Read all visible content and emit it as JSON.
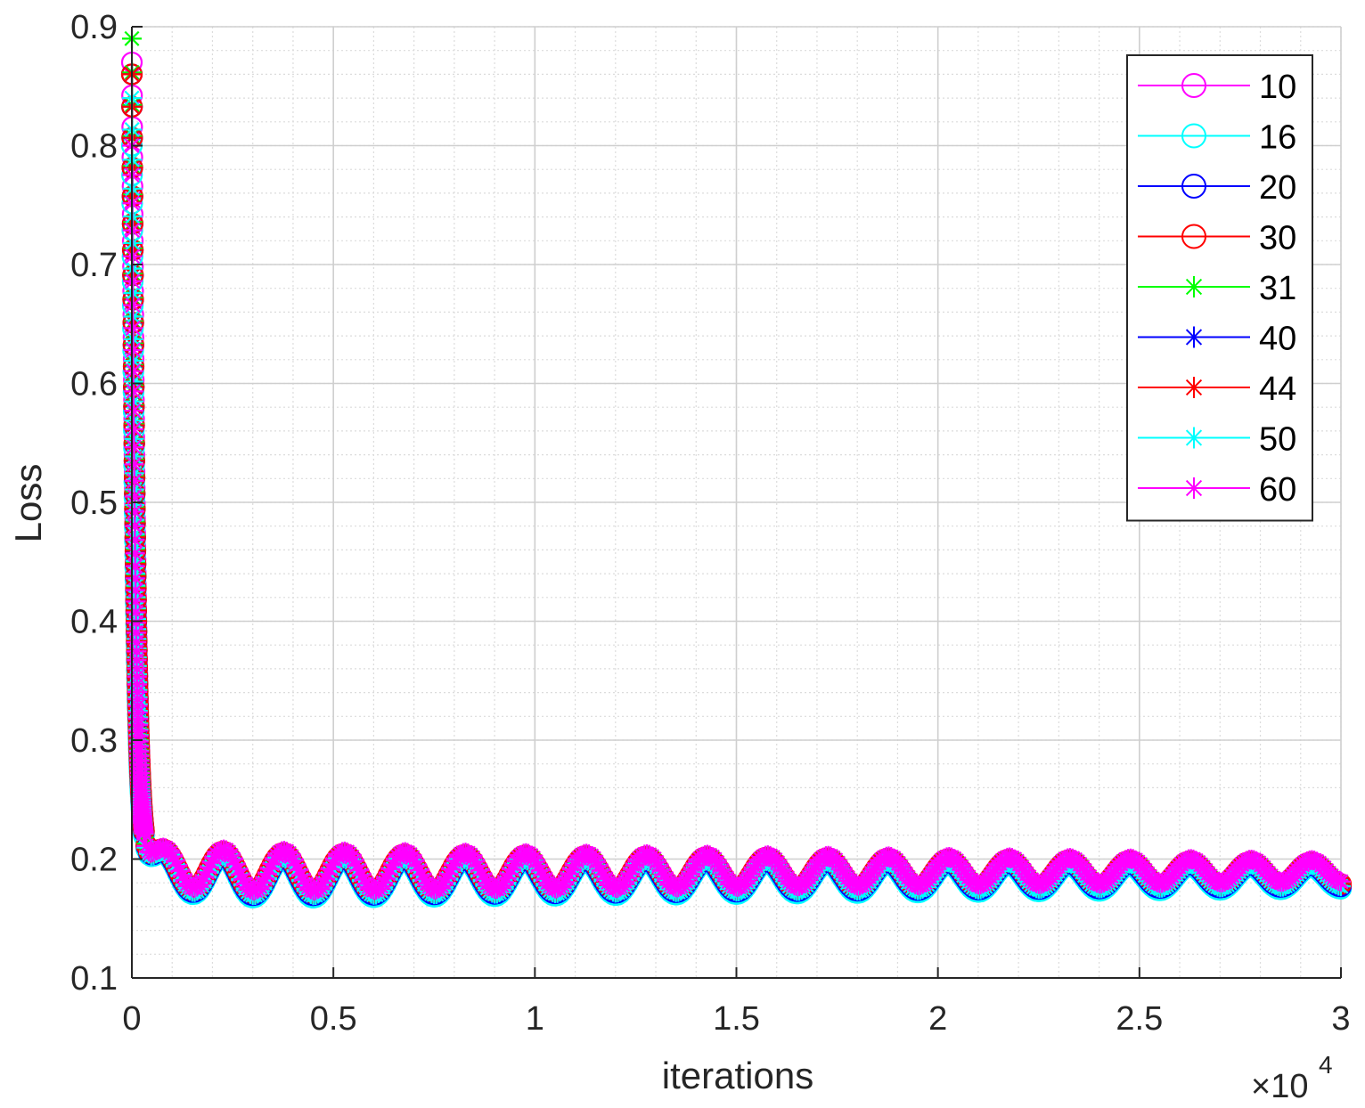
{
  "chart_data": {
    "type": "line",
    "xlabel": "iterations",
    "ylabel": "Loss",
    "x_multiplier": {
      "base": "×10",
      "exponent": "4"
    },
    "xlim": [
      0,
      30000
    ],
    "ylim": [
      0.1,
      0.9
    ],
    "x_ticks": [
      0,
      5000,
      10000,
      15000,
      20000,
      25000,
      30000
    ],
    "x_tick_labels": [
      "0",
      "0.5",
      "1",
      "1.5",
      "2",
      "2.5",
      "3"
    ],
    "y_ticks": [
      0.1,
      0.2,
      0.3,
      0.4,
      0.5,
      0.6,
      0.7,
      0.8,
      0.9
    ],
    "y_tick_labels": [
      "0.1",
      "0.2",
      "0.3",
      "0.4",
      "0.5",
      "0.6",
      "0.7",
      "0.8",
      "0.9"
    ],
    "grid": true,
    "minor_grid": true,
    "legend_position": "top-right",
    "series": [
      {
        "name": "10",
        "color": "#ff00ff",
        "marker": "circle",
        "start": 0.87,
        "floor": 0.175,
        "phase": 0.0
      },
      {
        "name": "16",
        "color": "#00ffff",
        "marker": "circle",
        "start": 0.8,
        "floor": 0.172,
        "phase": 0.05
      },
      {
        "name": "20",
        "color": "#0000ff",
        "marker": "circle",
        "start": 0.86,
        "floor": 0.174,
        "phase": 0.1
      },
      {
        "name": "30",
        "color": "#ff0000",
        "marker": "circle",
        "start": 0.86,
        "floor": 0.176,
        "phase": 0.15
      },
      {
        "name": "31",
        "color": "#00ff00",
        "marker": "asterisk",
        "start": 0.89,
        "floor": 0.177,
        "phase": 0.2
      },
      {
        "name": "40",
        "color": "#0000ff",
        "marker": "asterisk",
        "start": 0.86,
        "floor": 0.175,
        "phase": 0.25
      },
      {
        "name": "44",
        "color": "#ff0000",
        "marker": "asterisk",
        "start": 0.86,
        "floor": 0.176,
        "phase": 0.3
      },
      {
        "name": "50",
        "color": "#00ffff",
        "marker": "asterisk",
        "start": 0.84,
        "floor": 0.174,
        "phase": 0.35
      },
      {
        "name": "60",
        "color": "#ff00ff",
        "marker": "asterisk",
        "start": 0.8,
        "floor": 0.178,
        "phase": 0.4
      }
    ],
    "curve_shape": {
      "oscillation_period": 1500,
      "oscillation_amplitude_start": 0.018,
      "oscillation_amplitude_end": 0.009,
      "end_value": 0.185
    }
  }
}
